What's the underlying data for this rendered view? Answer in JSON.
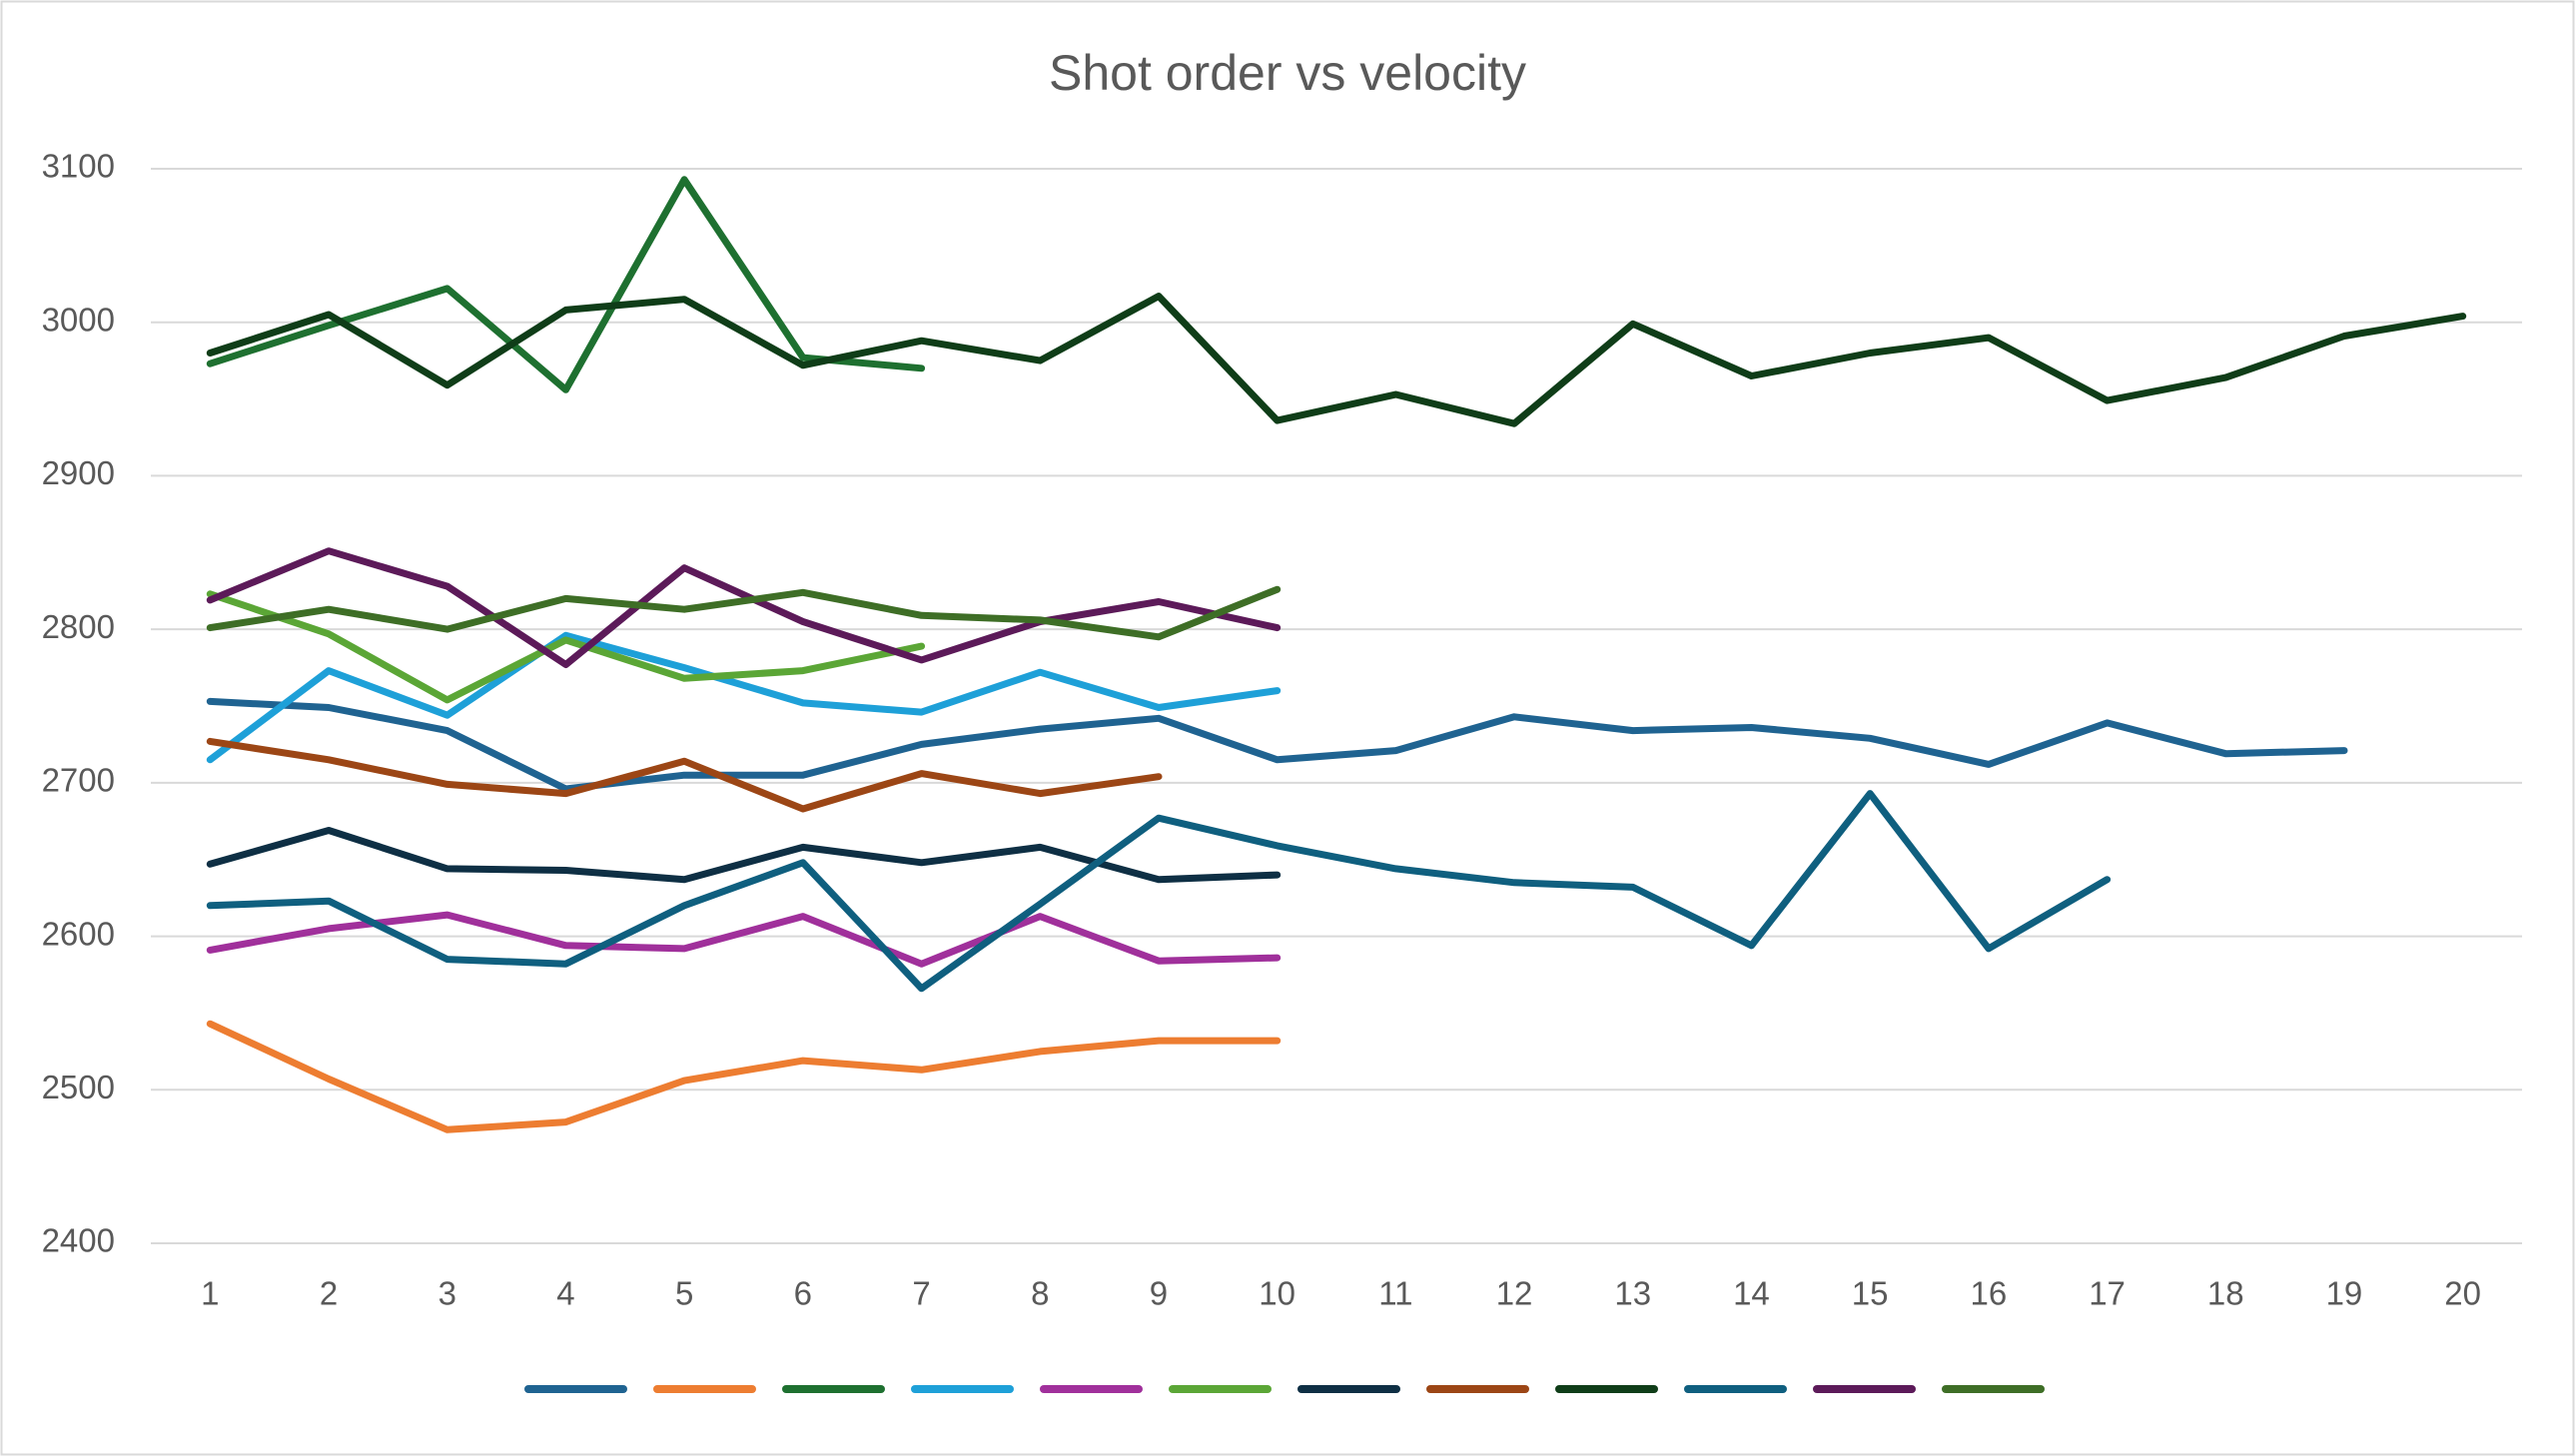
{
  "chart_data": {
    "type": "line",
    "title": "Shot order vs velocity",
    "categories": [
      1,
      2,
      3,
      4,
      5,
      6,
      7,
      8,
      9,
      10,
      11,
      12,
      13,
      14,
      15,
      16,
      17,
      18,
      19,
      20
    ],
    "ylim": [
      2400,
      3100
    ],
    "yticks": [
      2400,
      2500,
      2600,
      2700,
      2800,
      2900,
      3000,
      3100
    ],
    "grid": true,
    "series": [
      {
        "color": "#1f6391",
        "values": [
          2753,
          2749,
          2734,
          2696,
          2705,
          2705,
          2725,
          2735,
          2742,
          2715,
          2721,
          2743,
          2734,
          2736,
          2729,
          2712,
          2739,
          2719,
          2721,
          null
        ]
      },
      {
        "color": "#ed7d31",
        "values": [
          2543,
          2507,
          2474,
          2479,
          2506,
          2519,
          2513,
          2525,
          2532,
          2532,
          null,
          null,
          null,
          null,
          null,
          null,
          null,
          null,
          null,
          null
        ]
      },
      {
        "color": "#1e7030",
        "values": [
          2973,
          2998,
          3022,
          2956,
          3093,
          2977,
          2970,
          null,
          null,
          null,
          null,
          null,
          null,
          null,
          null,
          null,
          null,
          null,
          null,
          null
        ]
      },
      {
        "color": "#1ea0d8",
        "values": [
          2715,
          2773,
          2744,
          2796,
          2775,
          2752,
          2746,
          2772,
          2749,
          2760,
          null,
          null,
          null,
          null,
          null,
          null,
          null,
          null,
          null,
          null
        ]
      },
      {
        "color": "#a0309b",
        "values": [
          2591,
          2605,
          2614,
          2594,
          2592,
          2613,
          2582,
          2613,
          2584,
          2586,
          null,
          null,
          null,
          null,
          null,
          null,
          null,
          null,
          null,
          null
        ]
      },
      {
        "color": "#5ba636",
        "values": [
          2823,
          2797,
          2754,
          2793,
          2768,
          2773,
          2789,
          null,
          null,
          null,
          null,
          null,
          null,
          null,
          null,
          null,
          null,
          null,
          null,
          null
        ]
      },
      {
        "color": "#0e2f44",
        "values": [
          2647,
          2669,
          2644,
          2643,
          2637,
          2658,
          2648,
          2658,
          2637,
          2640,
          null,
          null,
          null,
          null,
          null,
          null,
          null,
          null,
          null,
          null
        ]
      },
      {
        "color": "#9c4615",
        "values": [
          2727,
          2715,
          2699,
          2693,
          2714,
          2683,
          2706,
          2693,
          2704,
          null,
          null,
          null,
          null,
          null,
          null,
          null,
          null,
          null,
          null,
          null
        ]
      },
      {
        "color": "#0f3d18",
        "values": [
          2980,
          3005,
          2959,
          3008,
          3015,
          2972,
          2988,
          2975,
          3017,
          2936,
          2953,
          2934,
          2999,
          2965,
          2980,
          2990,
          2949,
          2964,
          2991,
          3004
        ]
      },
      {
        "color": "#0f5f7f",
        "values": [
          2620,
          2623,
          2585,
          2582,
          2620,
          2648,
          2566,
          2621,
          2677,
          2659,
          2644,
          2635,
          2632,
          2594,
          2693,
          2592,
          2637,
          null,
          null,
          null
        ]
      },
      {
        "color": "#5c1a59",
        "values": [
          2819,
          2851,
          2828,
          2777,
          2840,
          2805,
          2780,
          2805,
          2818,
          2801,
          null,
          null,
          null,
          null,
          null,
          null,
          null,
          null,
          null,
          null
        ]
      },
      {
        "color": "#3e6e26",
        "values": [
          2801,
          2813,
          2800,
          2820,
          2813,
          2824,
          2809,
          2806,
          2795,
          2826,
          null,
          null,
          null,
          null,
          null,
          null,
          null,
          null,
          null,
          null
        ]
      }
    ]
  }
}
